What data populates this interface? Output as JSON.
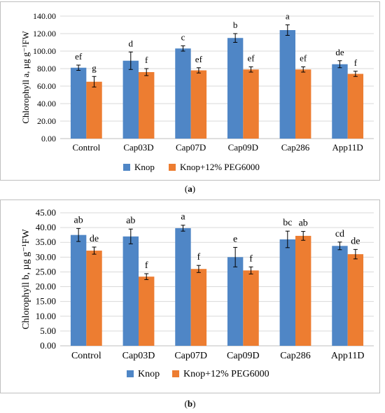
{
  "colors": {
    "knop": "#4f86c6",
    "peg": "#ed7d31",
    "grid": "#d9d9d9",
    "axis": "#bfbfbf"
  },
  "chart_data": [
    {
      "id": "a",
      "type": "bar",
      "caption": "a",
      "ylabel": "Chlorophyll a, µg g⁻¹FW",
      "ylim": [
        0,
        140
      ],
      "yticks": [
        "0.00",
        "20.00",
        "40.00",
        "60.00",
        "80.00",
        "100.00",
        "120.00",
        "140.00"
      ],
      "categories": [
        "Control",
        "Cap03D",
        "Cap07D",
        "Cap09D",
        "Cap286",
        "App11D"
      ],
      "grid": true,
      "legend_position": "bottom",
      "series": [
        {
          "name": "Knop",
          "color": "#4f86c6",
          "values": [
            81,
            89,
            103,
            115,
            124,
            85
          ],
          "errors": [
            3,
            10,
            3,
            5,
            6,
            4
          ],
          "letters": [
            "ef",
            "d",
            "c",
            "b",
            "a",
            "de"
          ]
        },
        {
          "name": "Knop+12% PEG6000",
          "color": "#ed7d31",
          "values": [
            65,
            76,
            78,
            79,
            79,
            74
          ],
          "errors": [
            6,
            4,
            3,
            3,
            3,
            3
          ],
          "letters": [
            "g",
            "f",
            "ef",
            "ef",
            "ef",
            "f"
          ]
        }
      ]
    },
    {
      "id": "b",
      "type": "bar",
      "caption": "b",
      "ylabel": "Chlorophyll b, µg g⁻¹FW",
      "ylim": [
        0,
        45
      ],
      "yticks": [
        "0.00",
        "5.00",
        "10.00",
        "15.00",
        "20.00",
        "25.00",
        "30.00",
        "35.00",
        "40.00",
        "45.00"
      ],
      "categories": [
        "Control",
        "Cap03D",
        "Cap07D",
        "Cap09D",
        "Cap286",
        "App11D"
      ],
      "grid": true,
      "legend_position": "bottom",
      "series": [
        {
          "name": "Knop",
          "color": "#4f86c6",
          "values": [
            37.5,
            37.0,
            39.8,
            30.0,
            36.0,
            33.8
          ],
          "errors": [
            2.2,
            2.5,
            1.0,
            3.3,
            2.8,
            1.3
          ],
          "letters": [
            "ab",
            "ab",
            "a",
            "e",
            "bc",
            "cd"
          ]
        },
        {
          "name": "Knop+12% PEG6000",
          "color": "#ed7d31",
          "values": [
            32.2,
            23.4,
            26.0,
            25.5,
            37.2,
            31.0
          ],
          "errors": [
            1.2,
            1.0,
            1.2,
            1.2,
            1.5,
            1.6
          ],
          "letters": [
            "de",
            "f",
            "f",
            "f",
            "ab",
            "de"
          ]
        }
      ]
    }
  ]
}
